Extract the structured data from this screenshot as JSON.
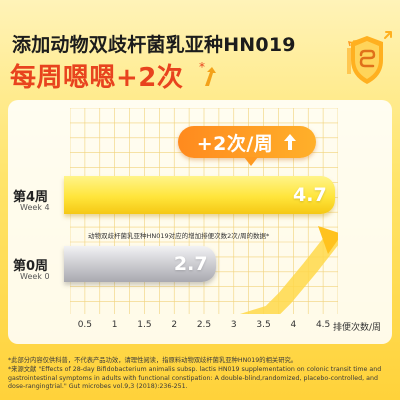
{
  "headline": "添加动物双歧杆菌乳亚种HN019",
  "subhead": "每周嗯嗯+2次",
  "subhead_mark": "*",
  "callout": "+2次/周",
  "note": "动物双歧杆菌乳亚种HN019对应的增加排便次数2次/周的数据*",
  "footnotes": [
    "*此部分内容仅供科普，不代表产品功效，请理性阅读，指原料动物双歧杆菌乳亚种HN019的相关研究。",
    "*来源文献 \"Effects of 28-day Bifidobacterium animalis subsp. lactis HN019 supplementation on colonic transit time and gastrointestinal symptoms in adults with functional constipation: A double-blind,randomized, placebo-controlled, and dose-rangingtrial.\" Gut microbes vol.9,3 (2018):236-251."
  ],
  "colors": {
    "accent": "#e8431e",
    "bar_week4": "#ffe53b",
    "bar_week0": "#c9c9ce",
    "callout": "#ff9a22"
  },
  "icons": [
    "shield-gut-badge-icon",
    "up-arrow-icon",
    "upward-trend-arrow-icon"
  ],
  "chart_data": {
    "type": "bar",
    "orientation": "horizontal",
    "categories": [
      {
        "label": "第4周",
        "sublabel": "Week 4",
        "value": 4.7
      },
      {
        "label": "第0周",
        "sublabel": "Week 0",
        "value": 2.7
      }
    ],
    "title": "",
    "xlabel": "排便次数/周",
    "ylabel": "",
    "xlim": [
      0.25,
      4.75
    ],
    "xticks": [
      0.5,
      1,
      1.5,
      2,
      2.5,
      3,
      3.5,
      4,
      4.5
    ],
    "grid": true
  }
}
